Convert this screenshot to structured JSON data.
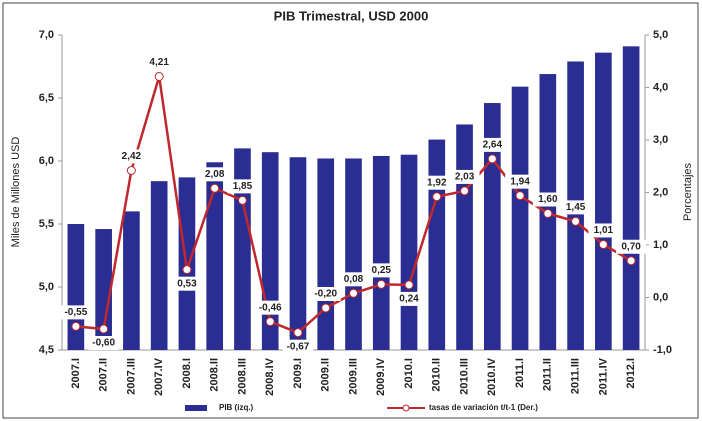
{
  "chart_data": {
    "type": "bar",
    "title": "PIB Trimestral, USD 2000",
    "ylabel": "Miles de Millones USD",
    "y2label": "Porcentajes",
    "categories": [
      "2007.I",
      "2007.II",
      "2007.III",
      "2007.IV",
      "2008.I",
      "2008.II",
      "2008.III",
      "2008.IV",
      "2009.I",
      "2009.II",
      "2009.III",
      "2009.IV",
      "2010.I",
      "2010.II",
      "2010.III",
      "2010.IV",
      "2011.I",
      "2011.II",
      "2011.III",
      "2011.IV",
      "2012.I"
    ],
    "series": [
      {
        "name": "PIB (izq.)",
        "type": "bar",
        "color": "#2a2d92",
        "values": [
          5.5,
          5.46,
          5.6,
          5.84,
          5.87,
          5.99,
          6.1,
          6.07,
          6.03,
          6.02,
          6.02,
          6.04,
          6.05,
          6.17,
          6.29,
          6.46,
          6.59,
          6.69,
          6.79,
          6.86,
          6.91
        ]
      },
      {
        "name": "tasas de variación t/t-1 (Der.)",
        "type": "line",
        "axis": "y2",
        "color": "#c0282d",
        "values": [
          -0.55,
          -0.6,
          2.42,
          4.21,
          0.53,
          2.08,
          1.85,
          -0.46,
          -0.67,
          -0.2,
          0.08,
          0.25,
          0.24,
          1.92,
          2.03,
          2.64,
          1.94,
          1.6,
          1.45,
          1.01,
          0.7
        ],
        "value_labels": [
          "-0,55",
          "-0,60",
          "2,42",
          "4,21",
          "0,53",
          "2,08",
          "1,85",
          "-0,46",
          "-0,67",
          "-0,20",
          "0,08",
          "0,25",
          "0,24",
          "1,92",
          "2,03",
          "2,64",
          "1,94",
          "1,60",
          "1,45",
          "1,01",
          "0,70"
        ]
      }
    ],
    "ylim": [
      4.5,
      7.0
    ],
    "yticks": [
      {
        "value": 4.5,
        "label": "4,5"
      },
      {
        "value": 5.0,
        "label": "5,0"
      },
      {
        "value": 5.5,
        "label": "5,5"
      },
      {
        "value": 6.0,
        "label": "6,0"
      },
      {
        "value": 6.5,
        "label": "6,5"
      },
      {
        "value": 7.0,
        "label": "7,0"
      }
    ],
    "y2lim": [
      -1.0,
      5.0
    ],
    "y2ticks": [
      {
        "value": -1.0,
        "label": "-1,0"
      },
      {
        "value": 0.0,
        "label": "0,0"
      },
      {
        "value": 1.0,
        "label": "1,0"
      },
      {
        "value": 2.0,
        "label": "2,0"
      },
      {
        "value": 3.0,
        "label": "3,0"
      },
      {
        "value": 4.0,
        "label": "4,0"
      },
      {
        "value": 5.0,
        "label": "5,0"
      }
    ],
    "grid": false,
    "legend": "bottom"
  }
}
